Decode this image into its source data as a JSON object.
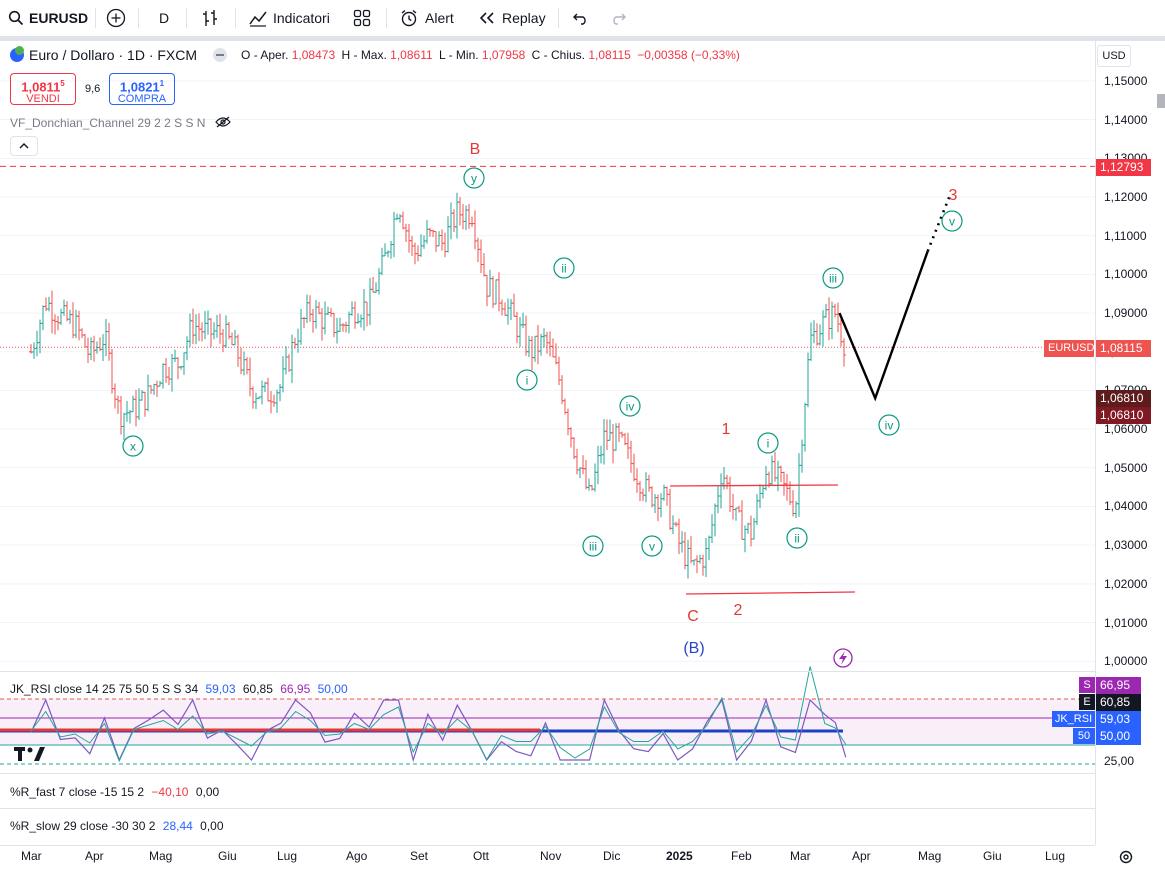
{
  "toolbar": {
    "symbol": "EURUSD",
    "interval": "D",
    "indicators_label": "Indicatori",
    "alert_label": "Alert",
    "replay_label": "Replay"
  },
  "legend": {
    "title": "Euro / Dollaro · 1D · FXCM",
    "open_label": "O - Aper.",
    "open": "1,08473",
    "high_label": "H - Max.",
    "high": "1,08611",
    "low_label": "L - Min.",
    "low": "1,07958",
    "close_label": "C - Chius.",
    "close": "1,08115",
    "change": "−0,00358 (−0,33%)"
  },
  "trade": {
    "sell_price_main": "1,0811",
    "sell_price_sup": "5",
    "sell_label": "VENDI",
    "spread": "9,6",
    "buy_price_main": "1,0821",
    "buy_price_sup": "1",
    "buy_label": "COMPRA"
  },
  "indicator_donchian": "VF_Donchian_Channel 29 2 2 S S N",
  "currency": "USD",
  "price_axis": [
    "1,15000",
    "1,14000",
    "1,13000",
    "1,12000",
    "1,11000",
    "1,10000",
    "1,09000",
    "1,08000",
    "1,07000",
    "1,06000",
    "1,05000",
    "1,04000",
    "1,03000",
    "1,02000",
    "1,01000",
    "1,00000"
  ],
  "price_labels": {
    "resistance": "1,12793",
    "symbol_tag": "EURUSD",
    "last": "1,08115",
    "level_a": "1,06810",
    "level_b": "1,06810"
  },
  "rsi": {
    "title": "JK_RSI close 14 25 75 50 5 S S 34",
    "v1": "59,03",
    "v2": "60,85",
    "v3": "66,95",
    "v4": "50,00",
    "tag_s": "S",
    "tag_e": "E",
    "tag_name": "JK_RSI",
    "tag_50": "50",
    "axis_25": "25,00"
  },
  "rfast": {
    "title": "%R_fast 7 close -15 15 2",
    "v1": "−40,10",
    "v2": "0,00"
  },
  "rslow": {
    "title": "%R_slow 29 close -30 30 2",
    "v1": "28,44",
    "v2": "0,00"
  },
  "time_axis": [
    "Mar",
    "Apr",
    "Mag",
    "Giu",
    "Lug",
    "Ago",
    "Set",
    "Ott",
    "Nov",
    "Dic",
    "2025",
    "Feb",
    "Mar",
    "Apr",
    "Mag",
    "Giu",
    "Lug"
  ],
  "annotations": {
    "wave_labels_red": [
      "B",
      "1",
      "2",
      "C",
      "3"
    ],
    "wave_label_blue": "(B)",
    "circled": [
      "y",
      "x",
      "ii",
      "i",
      "iv",
      "iii",
      "v",
      "i",
      "ii",
      "iii",
      "iv",
      "v"
    ]
  },
  "colors": {
    "up": "#26a69a",
    "down": "#ef5350",
    "accent_red": "#f23645",
    "accent_blue": "#2962ff",
    "wave_green": "#089981",
    "rsi_purple": "#7e57c2"
  },
  "chart_data": {
    "type": "ohlc",
    "title": "Euro / Dollaro · 1D · FXCM",
    "y_range": [
      0.996,
      1.157
    ],
    "x": [
      "2024-03",
      "2024-04",
      "2024-05",
      "2024-06",
      "2024-07",
      "2024-08",
      "2024-09",
      "2024-10",
      "2024-11",
      "2024-12",
      "2025-01",
      "2025-02",
      "2025-03"
    ],
    "close_path": [
      {
        "x": "2024-03-01",
        "y": 1.08
      },
      {
        "x": "2024-03-08",
        "y": 1.093
      },
      {
        "x": "2024-03-15",
        "y": 1.089
      },
      {
        "x": "2024-03-22",
        "y": 1.087
      },
      {
        "x": "2024-03-29",
        "y": 1.079
      },
      {
        "x": "2024-04-05",
        "y": 1.084
      },
      {
        "x": "2024-04-12",
        "y": 1.064
      },
      {
        "x": "2024-04-19",
        "y": 1.065
      },
      {
        "x": "2024-04-26",
        "y": 1.069
      },
      {
        "x": "2024-05-03",
        "y": 1.076
      },
      {
        "x": "2024-05-10",
        "y": 1.077
      },
      {
        "x": "2024-05-17",
        "y": 1.087
      },
      {
        "x": "2024-05-24",
        "y": 1.085
      },
      {
        "x": "2024-05-31",
        "y": 1.085
      },
      {
        "x": "2024-06-07",
        "y": 1.08
      },
      {
        "x": "2024-06-14",
        "y": 1.07
      },
      {
        "x": "2024-06-21",
        "y": 1.069
      },
      {
        "x": "2024-06-28",
        "y": 1.071
      },
      {
        "x": "2024-07-05",
        "y": 1.084
      },
      {
        "x": "2024-07-12",
        "y": 1.091
      },
      {
        "x": "2024-07-19",
        "y": 1.088
      },
      {
        "x": "2024-07-26",
        "y": 1.086
      },
      {
        "x": "2024-08-02",
        "y": 1.091
      },
      {
        "x": "2024-08-09",
        "y": 1.092
      },
      {
        "x": "2024-08-16",
        "y": 1.103
      },
      {
        "x": "2024-08-23",
        "y": 1.119
      },
      {
        "x": "2024-08-30",
        "y": 1.105
      },
      {
        "x": "2024-09-06",
        "y": 1.11
      },
      {
        "x": "2024-09-13",
        "y": 1.108
      },
      {
        "x": "2024-09-20",
        "y": 1.116
      },
      {
        "x": "2024-09-27",
        "y": 1.116
      },
      {
        "x": "2024-10-04",
        "y": 1.097
      },
      {
        "x": "2024-10-11",
        "y": 1.094
      },
      {
        "x": "2024-10-18",
        "y": 1.087
      },
      {
        "x": "2024-10-25",
        "y": 1.08
      },
      {
        "x": "2024-11-01",
        "y": 1.083
      },
      {
        "x": "2024-11-08",
        "y": 1.072
      },
      {
        "x": "2024-11-15",
        "y": 1.054
      },
      {
        "x": "2024-11-22",
        "y": 1.042
      },
      {
        "x": "2024-11-29",
        "y": 1.058
      },
      {
        "x": "2024-12-06",
        "y": 1.057
      },
      {
        "x": "2024-12-13",
        "y": 1.05
      },
      {
        "x": "2024-12-20",
        "y": 1.043
      },
      {
        "x": "2024-12-27",
        "y": 1.043
      },
      {
        "x": "2025-01-03",
        "y": 1.031
      },
      {
        "x": "2025-01-10",
        "y": 1.024
      },
      {
        "x": "2025-01-17",
        "y": 1.028
      },
      {
        "x": "2025-01-24",
        "y": 1.05
      },
      {
        "x": "2025-01-31",
        "y": 1.036
      },
      {
        "x": "2025-02-07",
        "y": 1.033
      },
      {
        "x": "2025-02-14",
        "y": 1.05
      },
      {
        "x": "2025-02-21",
        "y": 1.046
      },
      {
        "x": "2025-02-28",
        "y": 1.04
      },
      {
        "x": "2025-03-07",
        "y": 1.083
      },
      {
        "x": "2025-03-14",
        "y": 1.088
      },
      {
        "x": "2025-03-19",
        "y": 1.09
      },
      {
        "x": "2025-03-24",
        "y": 1.081
      }
    ],
    "horizontal_levels": {
      "resistance": 1.12793,
      "last": 1.08115,
      "level": 1.0681
    },
    "projection": [
      {
        "x": "2025-03-21",
        "y": 1.09
      },
      {
        "x": "2025-04-07",
        "y": 1.068
      },
      {
        "x": "2025-05-02",
        "y": 1.106
      },
      {
        "x": "2025-05-13",
        "y": 1.121
      }
    ],
    "rsi_levels": {
      "upper": 66.95,
      "mid": 50.0,
      "lower": 25.0
    }
  }
}
